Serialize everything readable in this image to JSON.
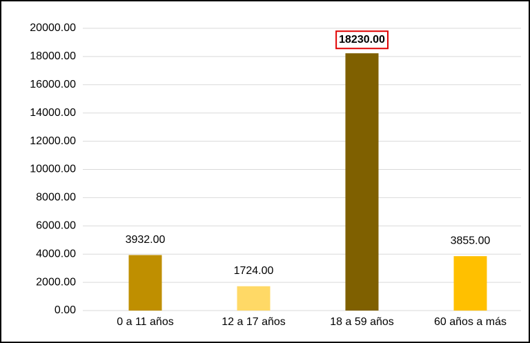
{
  "chart_data": {
    "type": "bar",
    "categories": [
      "0 a 11 años",
      "12 a 17 años",
      "18 a 59 años",
      "60 años a más"
    ],
    "values": [
      3932,
      1724,
      18230,
      3855
    ],
    "value_labels": [
      "3932.00",
      "1724.00",
      "18230.00",
      "3855.00"
    ],
    "colors": [
      "#bf8f00",
      "#ffd966",
      "#7f6000",
      "#ffc000"
    ],
    "highlight": 2,
    "highlight_color": "#e00000",
    "ylim": [
      0,
      20000
    ],
    "yticks": [
      {
        "value": 0,
        "label": "0.00"
      },
      {
        "value": 2000,
        "label": "2000.00"
      },
      {
        "value": 4000,
        "label": "4000.00"
      },
      {
        "value": 6000,
        "label": "6000.00"
      },
      {
        "value": 8000,
        "label": "8000.00"
      },
      {
        "value": 10000,
        "label": "10000.00"
      },
      {
        "value": 12000,
        "label": "12000.00"
      },
      {
        "value": 14000,
        "label": "14000.00"
      },
      {
        "value": 16000,
        "label": "16000.00"
      },
      {
        "value": 18000,
        "label": "18000.00"
      },
      {
        "value": 20000,
        "label": "20000.00"
      }
    ],
    "grid": true
  }
}
